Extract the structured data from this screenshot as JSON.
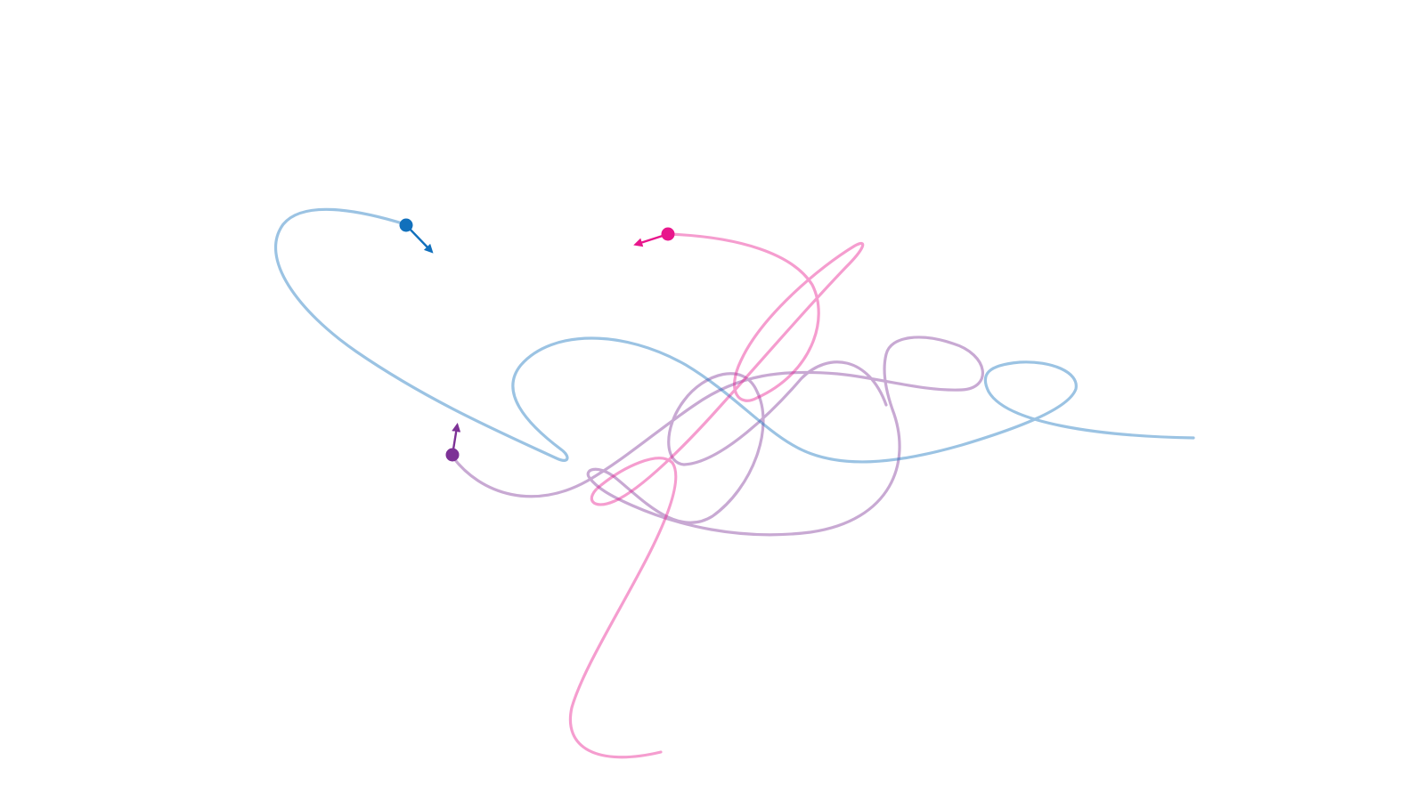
{
  "diagram": {
    "background": "#ffffff",
    "bodies": [
      {
        "name": "blue-body",
        "color": "#1170bc",
        "trail_opacity": 0.42
      },
      {
        "name": "magenta-body",
        "color": "#e8168c",
        "trail_opacity": 0.42
      },
      {
        "name": "purple-body",
        "color": "#7d3296",
        "trail_opacity": 0.42
      }
    ]
  }
}
